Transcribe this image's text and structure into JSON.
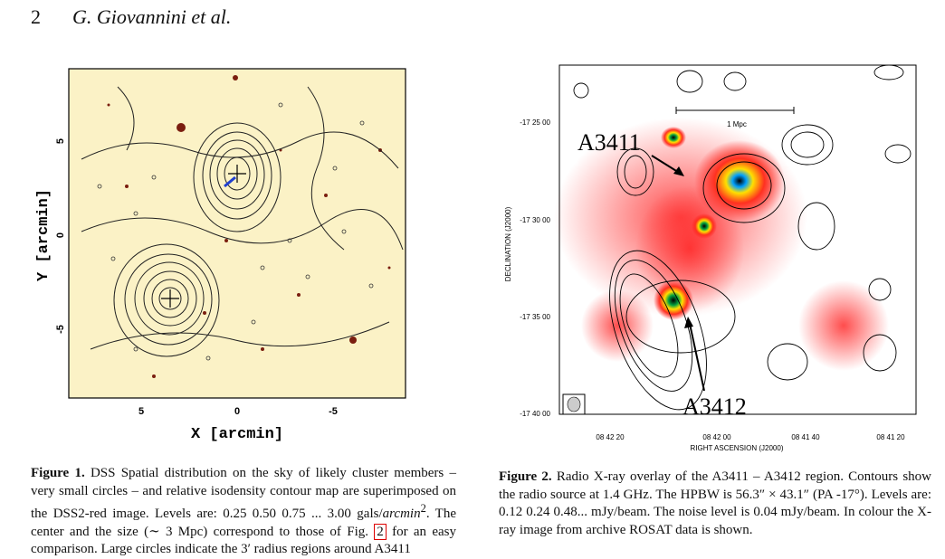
{
  "header": {
    "page_number": "2",
    "authors": "G. Giovannini et al."
  },
  "figure1": {
    "x_label": "X [arcmin]",
    "y_label": "Y [arcmin]",
    "x_ticks": [
      "5",
      "0",
      "-5"
    ],
    "y_ticks": [
      "5",
      "0",
      "-5"
    ],
    "colors": {
      "background": "#fbf2c6",
      "contour": "#222222",
      "star": "#7a1e0f"
    }
  },
  "figure2": {
    "dec_ticks": [
      "-17 25 00",
      "-17 30 00",
      "-17 35 00",
      "-17 40 00"
    ],
    "ra_ticks": [
      "08 42 20",
      "08 42 00",
      "08 41 40",
      "08 41 20"
    ],
    "y_label": "DECLINATION (J2000)",
    "x_label": "RIGHT ASCENSION (J2000)",
    "scale_bar": "1 Mpc",
    "label_a3411": "A3411",
    "label_a3412": "A3412",
    "colors": {
      "xray_low": "#ff2020",
      "xray_high": "#ffe000",
      "xray_peak": "#00a0ff",
      "contour": "#000000"
    }
  },
  "caption1": {
    "label": "Figure 1.",
    "text_a": " DSS Spatial distribution on the sky of likely cluster members – very small circles – and relative isodensity contour map are superimposed on the DSS2-red image. Levels are: 0.25 0.50 0.75 ... 3.00 gals/",
    "unit": "arcmin",
    "sup": "2",
    "text_b": ". The center and the size (∼ 3 Mpc) correspond to those of Fig. ",
    "ref": "2",
    "text_c": " for an easy comparison. Large circles indicate the 3′ radius regions around A3411"
  },
  "caption2": {
    "label": "Figure 2.",
    "text": " Radio X-ray overlay of the A3411 – A3412 region. Contours show the radio source at 1.4 GHz. The HPBW is 56.3″ × 43.1″ (PA -17°). Levels are: 0.12 0.24 0.48... mJy/beam. The noise level is 0.04 mJy/beam. In colour the X-ray image from archive ROSAT data is shown."
  }
}
